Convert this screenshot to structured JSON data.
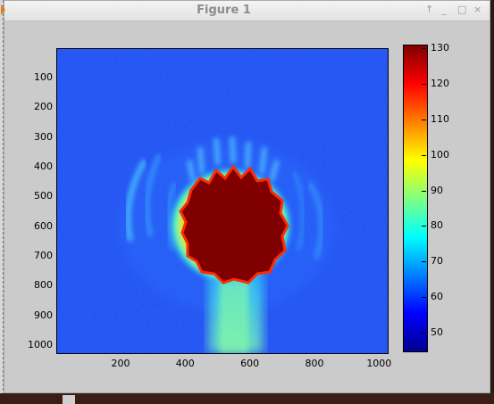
{
  "window": {
    "title": "Figure 1",
    "controls": {
      "pin": "↑",
      "minimize": "_",
      "maximize": "□",
      "close": "×"
    }
  },
  "chart_data": {
    "type": "heatmap",
    "colormap": "jet",
    "y_ticks": [
      "100",
      "200",
      "300",
      "400",
      "500",
      "600",
      "700",
      "800",
      "900",
      "1000"
    ],
    "x_ticks": [
      "200",
      "400",
      "600",
      "800",
      "1000"
    ],
    "colorbar_ticks": [
      "130",
      "120",
      "110",
      "100",
      "90",
      "80",
      "70",
      "60",
      "50"
    ],
    "xlim": [
      1,
      1024
    ],
    "ylim": [
      1,
      1024
    ],
    "clim": [
      45,
      131
    ]
  }
}
